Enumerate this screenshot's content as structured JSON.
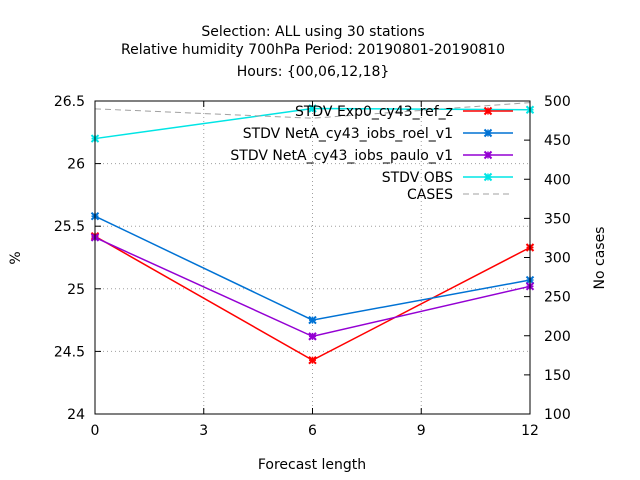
{
  "chart_data": {
    "type": "line",
    "title": [
      "Selection: ALL using    30 stations",
      "Relative humidity 700hPa   Period: 20190801-20190810",
      "Hours: {00,06,12,18}"
    ],
    "xlabel": "Forecast length",
    "ylabel": "%",
    "y2label": "No cases",
    "x": [
      0,
      6,
      12
    ],
    "xlim": [
      0,
      12
    ],
    "ylim": [
      24,
      26.5
    ],
    "y2lim": [
      100,
      500
    ],
    "xticks": [
      "0",
      "3",
      "6",
      "9",
      "12"
    ],
    "yticks": [
      "24",
      "24.5",
      "25",
      "25.5",
      "26",
      "26.5"
    ],
    "y2ticks": [
      "100",
      "150",
      "200",
      "250",
      "300",
      "350",
      "400",
      "450",
      "500"
    ],
    "grid": true,
    "legend_position": "top-right",
    "series": [
      {
        "name": "STDV Exp0_cy43_ref_z",
        "color": "#ff0000",
        "values": [
          25.42,
          24.43,
          25.33
        ]
      },
      {
        "name": "STDV NetA_cy43_iobs_roel_v1",
        "color": "#0072d4",
        "values": [
          25.58,
          24.75,
          25.07
        ]
      },
      {
        "name": "STDV NetA_cy43_iobs_paulo_v1",
        "color": "#9400d3",
        "values": [
          25.41,
          24.62,
          25.02
        ]
      },
      {
        "name": "STDV OBS",
        "color": "#00e5e5",
        "values": [
          26.2,
          26.44,
          26.43
        ]
      },
      {
        "name": "CASES",
        "color": "#a0a0a0",
        "axis": "y2",
        "dashed": true,
        "values": [
          490,
          478,
          498
        ]
      }
    ]
  }
}
